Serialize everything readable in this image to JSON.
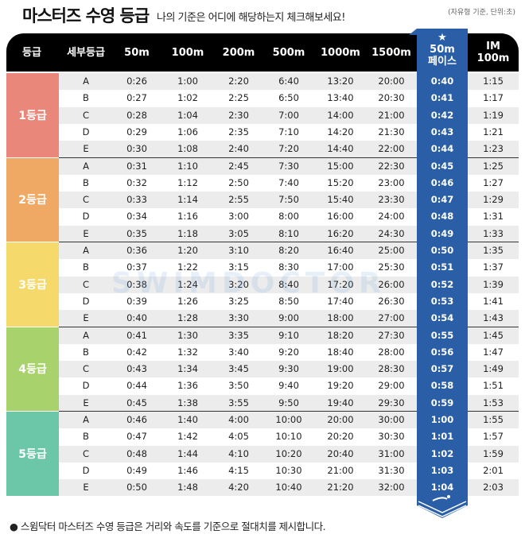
{
  "title": "마스터즈 수영 등급",
  "subtitle": "나의 기준은 어디에 해당하는지 체크해보세요!",
  "unit_note": "(자유형 기준, 단위:초)",
  "watermark": "SWIMDOCTOR",
  "colors": {
    "pace_column": "#2a5fa8",
    "grade1": "#e8877a",
    "grade2": "#f0a865",
    "grade3": "#f5d96a",
    "grade4": "#a8d26c",
    "grade5": "#6cc7a8"
  },
  "columns": [
    "등급",
    "세부등급",
    "50m",
    "100m",
    "200m",
    "500m",
    "1000m",
    "1500m",
    "★\n50m\n페이스",
    "IM\n100m"
  ],
  "groups": [
    {
      "label": "1등급",
      "rows": [
        [
          "A",
          "0:26",
          "1:00",
          "2:20",
          "6:40",
          "13:20",
          "20:00",
          "0:40",
          "1:15"
        ],
        [
          "B",
          "0:27",
          "1:02",
          "2:25",
          "6:50",
          "13:40",
          "20:30",
          "0:41",
          "1:17"
        ],
        [
          "C",
          "0:28",
          "1:04",
          "2:30",
          "7:00",
          "14:00",
          "21:00",
          "0:42",
          "1:19"
        ],
        [
          "D",
          "0:29",
          "1:06",
          "2:35",
          "7:10",
          "14:20",
          "21:30",
          "0:43",
          "1:21"
        ],
        [
          "E",
          "0:30",
          "1:08",
          "2:40",
          "7:20",
          "14:40",
          "22:00",
          "0:44",
          "1:23"
        ]
      ]
    },
    {
      "label": "2등급",
      "rows": [
        [
          "A",
          "0:31",
          "1:10",
          "2:45",
          "7:30",
          "15:00",
          "22:30",
          "0:45",
          "1:25"
        ],
        [
          "B",
          "0:32",
          "1:12",
          "2:50",
          "7:40",
          "15:20",
          "23:00",
          "0:46",
          "1:27"
        ],
        [
          "C",
          "0:33",
          "1:14",
          "2:55",
          "7:50",
          "15:40",
          "23:30",
          "0:47",
          "1:29"
        ],
        [
          "D",
          "0:34",
          "1:16",
          "3:00",
          "8:00",
          "16:00",
          "24:00",
          "0:48",
          "1:31"
        ],
        [
          "E",
          "0:35",
          "1:18",
          "3:05",
          "8:10",
          "16:20",
          "24:30",
          "0:49",
          "1:33"
        ]
      ]
    },
    {
      "label": "3등급",
      "rows": [
        [
          "A",
          "0:36",
          "1:20",
          "3:10",
          "8:20",
          "16:40",
          "25:00",
          "0:50",
          "1:35"
        ],
        [
          "B",
          "0:37",
          "1:22",
          "3:15",
          "8:30",
          "17:00",
          "25:30",
          "0:51",
          "1:37"
        ],
        [
          "C",
          "0:38",
          "1:24",
          "3:20",
          "8:40",
          "17:20",
          "26:00",
          "0:52",
          "1:39"
        ],
        [
          "D",
          "0:39",
          "1:26",
          "3:25",
          "8:50",
          "17:40",
          "26:30",
          "0:53",
          "1:41"
        ],
        [
          "E",
          "0:40",
          "1:28",
          "3:30",
          "9:00",
          "18:00",
          "27:00",
          "0:54",
          "1:43"
        ]
      ]
    },
    {
      "label": "4등급",
      "rows": [
        [
          "A",
          "0:41",
          "1:30",
          "3:35",
          "9:10",
          "18:20",
          "27:30",
          "0:55",
          "1:45"
        ],
        [
          "B",
          "0:42",
          "1:32",
          "3:40",
          "9:20",
          "18:40",
          "28:00",
          "0:56",
          "1:47"
        ],
        [
          "C",
          "0:43",
          "1:34",
          "3:45",
          "9:30",
          "19:00",
          "28:30",
          "0:57",
          "1:49"
        ],
        [
          "D",
          "0:44",
          "1:36",
          "3:50",
          "9:40",
          "19:20",
          "29:00",
          "0:58",
          "1:51"
        ],
        [
          "E",
          "0:45",
          "1:38",
          "3:55",
          "9:50",
          "19:40",
          "29:30",
          "0:59",
          "1:53"
        ]
      ]
    },
    {
      "label": "5등급",
      "rows": [
        [
          "A",
          "0:46",
          "1:40",
          "4:00",
          "10:00",
          "20:00",
          "30:00",
          "1:00",
          "1:55"
        ],
        [
          "B",
          "0:47",
          "1:42",
          "4:05",
          "10:10",
          "20:20",
          "30:30",
          "1:01",
          "1:57"
        ],
        [
          "C",
          "0:48",
          "1:44",
          "4:10",
          "10:20",
          "20:40",
          "31:00",
          "1:02",
          "1:59"
        ],
        [
          "D",
          "0:49",
          "1:46",
          "4:15",
          "10:30",
          "21:00",
          "31:30",
          "1:03",
          "2:01"
        ],
        [
          "E",
          "0:50",
          "1:48",
          "4:20",
          "10:40",
          "21:20",
          "32:00",
          "1:04",
          "2:03"
        ]
      ]
    }
  ],
  "note": "● 스윔닥터 마스터즈 수영 등급은 거리와 속도를 기준으로 절대치를 제시합니다.",
  "icons": {
    "pace_badge": "swimmer-icon",
    "pace_header": "star-icon"
  }
}
